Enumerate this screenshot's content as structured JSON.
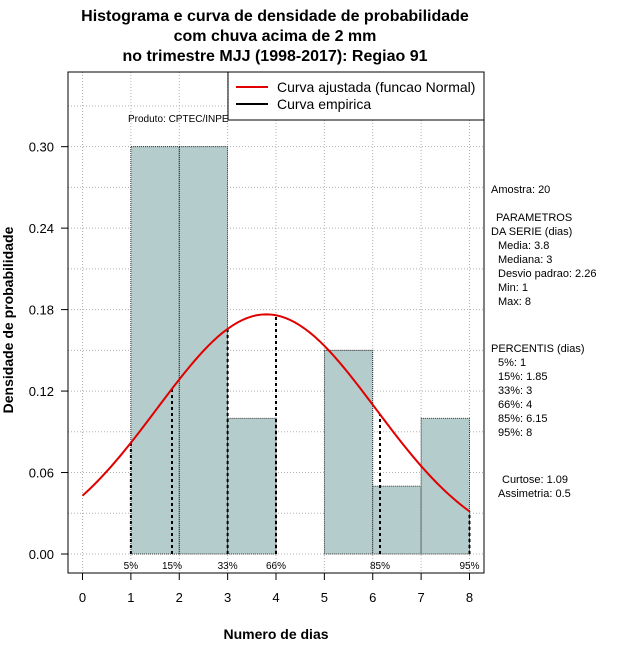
{
  "chart_data": {
    "type": "histogram",
    "title_lines": [
      "Histograma e curva de densidade de probabilidade",
      "com chuva acima de 2 mm",
      "no trimestre MJJ (1998-2017): Regiao 91"
    ],
    "xlabel": "Numero de dias",
    "ylabel": "Densidade de probabilidade",
    "xlim": [
      -0.3,
      8.3
    ],
    "ylim": [
      -0.014,
      0.355
    ],
    "x_ticks": [
      0,
      1,
      2,
      3,
      4,
      5,
      6,
      7,
      8
    ],
    "x_tick_labels": [
      "0",
      "1",
      "2",
      "3",
      "4",
      "5",
      "6",
      "7",
      "8"
    ],
    "y_ticks": [
      0.0,
      0.06,
      0.12,
      0.18,
      0.24,
      0.3
    ],
    "y_tick_labels": [
      "0.00",
      "0.06",
      "0.12",
      "0.18",
      "0.24",
      "0.30"
    ],
    "bars": [
      {
        "x0": 1,
        "x1": 2,
        "density": 0.3
      },
      {
        "x0": 2,
        "x1": 3,
        "density": 0.3
      },
      {
        "x0": 3,
        "x1": 4,
        "density": 0.1
      },
      {
        "x0": 4,
        "x1": 5,
        "density": 0.0
      },
      {
        "x0": 5,
        "x1": 6,
        "density": 0.15
      },
      {
        "x0": 6,
        "x1": 7,
        "density": 0.05
      },
      {
        "x0": 7,
        "x1": 8,
        "density": 0.1
      }
    ],
    "normal_curve": {
      "mean": 3.8,
      "sd": 2.26,
      "x_range": [
        0,
        8
      ]
    },
    "percentile_markers": [
      {
        "label": "5%",
        "x": 1
      },
      {
        "label": "15%",
        "x": 1.85
      },
      {
        "label": "33%",
        "x": 3
      },
      {
        "label": "66%",
        "x": 4
      },
      {
        "label": "85%",
        "x": 6.15
      },
      {
        "label": "95%",
        "x": 8
      }
    ],
    "legend": [
      {
        "label": "Curva ajustada (funcao Normal)",
        "color": "#e00000"
      },
      {
        "label": "Curva empirica",
        "color": "#000000"
      }
    ],
    "legend_position": "top-right",
    "producer": "Produto: CPTEC/INPE",
    "bar_color": "#b4cccc",
    "grid": true
  },
  "side_panel": {
    "sample": "Amostra: 20",
    "params_title_1": "PARAMETROS",
    "params_title_2": "DA SERIE (dias)",
    "params": [
      "Media: 3.8",
      "Mediana: 3",
      "Desvio padrao: 2.26",
      "Min: 1",
      "Max: 8"
    ],
    "percentis_title": "PERCENTIS (dias)",
    "percentis": [
      "5%: 1",
      "15%: 1.85",
      "33%: 3",
      "66%: 4",
      "85%: 6.15",
      "95%: 8"
    ],
    "curtose": "Curtose: 1.09",
    "assimetria": "Assimetria: 0.5"
  }
}
